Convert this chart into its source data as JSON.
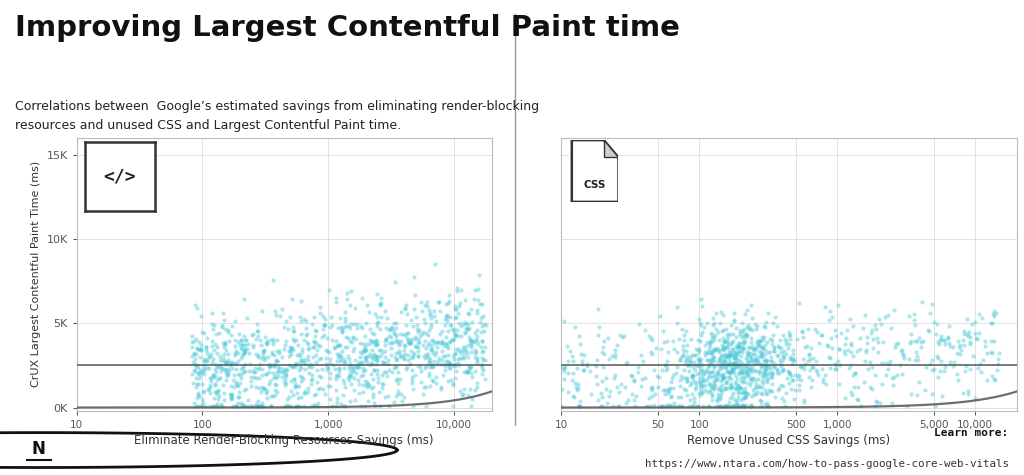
{
  "title": "Improving Largest Contentful Paint time",
  "subtitle": "Correlations between  Google’s estimated savings from eliminating render-blocking\nresources and unused CSS and Largest Contentful Paint time.",
  "plot1_xlabel": "Eliminate Render-Blocking Resources Savings (ms)",
  "plot2_xlabel": "Remove Unused CSS Savings (ms)",
  "ylabel": "CrUX Largest Contentful Paint Time (ms)",
  "scatter_color": "#4dc8d8",
  "scatter_alpha": 0.45,
  "scatter_size": 9,
  "curve_color": "#555555",
  "hline_color": "#555555",
  "hline_y": 2500,
  "bg_color": "#ffffff",
  "footer_bg": "#e0e0e0",
  "plot1_xlim": [
    10,
    20000
  ],
  "plot2_xlim": [
    10,
    20000
  ],
  "ylim": [
    -200,
    16000
  ],
  "yticks": [
    0,
    5000,
    10000,
    15000
  ],
  "ytick_labels": [
    "0K",
    "5K",
    "10K",
    "15K"
  ],
  "plot1_xticks": [
    10,
    100,
    1000,
    10000
  ],
  "plot1_xtick_labels": [
    "10",
    "100",
    "1,000",
    "10,000"
  ],
  "plot2_xticks": [
    10,
    50,
    100,
    500,
    1000,
    5000,
    10000
  ],
  "plot2_xtick_labels": [
    "10",
    "50",
    "100",
    "500",
    "1,000",
    "5,000",
    "10,000"
  ],
  "learn_more": "Learn more:",
  "url": "https://www.ntara.com/how-to-pass-google-core-web-vitals",
  "seed1": 42,
  "seed2": 123,
  "n_points": 1200
}
